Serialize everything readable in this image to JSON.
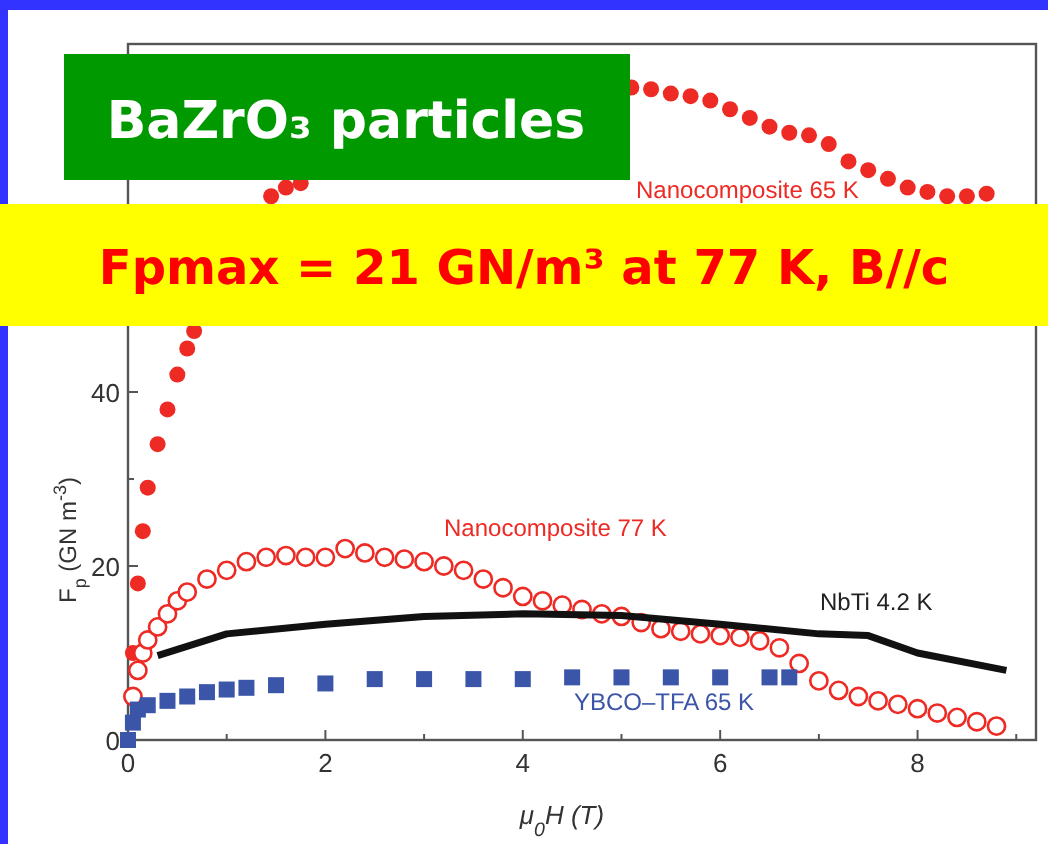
{
  "chart_data": {
    "type": "scatter",
    "xlabel": "μ$_{0}$H (T)",
    "ylabel": "F$_{p}$ (GN m$^{-3}$)",
    "xlim": [
      0,
      9.2
    ],
    "ylim": [
      0,
      80
    ],
    "xticks": [
      0,
      {
        "value": 1,
        "label": null
      },
      2,
      {
        "value": 3,
        "label": null
      },
      4,
      {
        "value": 5,
        "label": null
      },
      6,
      {
        "value": 7,
        "label": null
      },
      8,
      {
        "value": 9,
        "label": null
      }
    ],
    "yticks": [
      0,
      {
        "value": 10,
        "label": null
      },
      20,
      {
        "value": 30,
        "label": null
      },
      40
    ],
    "grid": false,
    "annotations": [
      "BaZrO₃ particles",
      "Fpmax = 21 GN/m³ at 77 K, B//c"
    ],
    "series": [
      {
        "name": "Nanocomposite 65 K",
        "color": "#ee2a24",
        "marker": "circle",
        "x": [
          0.05,
          0.1,
          0.15,
          0.2,
          0.3,
          0.4,
          0.5,
          0.6,
          0.67,
          1.45,
          1.6,
          1.75,
          5.1,
          5.3,
          5.5,
          5.7,
          5.9,
          6.1,
          6.3,
          6.5,
          6.7,
          6.9,
          7.1,
          7.3,
          7.5,
          7.7,
          7.9,
          8.1,
          8.3,
          8.5,
          8.7
        ],
        "values": [
          10,
          18,
          24,
          29,
          34,
          38,
          42,
          45,
          47,
          62.5,
          63.5,
          64,
          75,
          74.8,
          74.3,
          74,
          73.5,
          72.5,
          71.5,
          70.5,
          69.8,
          69.5,
          68.5,
          66.5,
          65.5,
          64.5,
          63.5,
          63,
          62.5,
          62.5,
          62.8
        ]
      },
      {
        "name": "Nanocomposite 77 K",
        "color": "#ee2a24",
        "marker": "circle",
        "x": [
          0.05,
          0.1,
          0.15,
          0.2,
          0.3,
          0.4,
          0.5,
          0.6,
          0.8,
          1.0,
          1.2,
          1.4,
          1.6,
          1.8,
          2.0,
          2.2,
          2.4,
          2.6,
          2.8,
          3.0,
          3.2,
          3.4,
          3.6,
          3.8,
          4.0,
          4.2,
          4.4,
          4.6,
          4.8,
          5.0,
          5.2,
          5.4,
          5.6,
          5.8,
          6.0,
          6.2,
          6.4,
          6.6,
          6.8,
          7.0,
          7.2,
          7.4,
          7.6,
          7.8,
          8.0,
          8.2,
          8.4,
          8.6,
          8.8
        ],
        "values": [
          5,
          8,
          10,
          11.5,
          13,
          14.5,
          16,
          17,
          18.5,
          19.5,
          20.5,
          21,
          21.2,
          21,
          21,
          22,
          21.5,
          21,
          20.8,
          20.5,
          20,
          19.5,
          18.5,
          17.5,
          16.5,
          16,
          15.5,
          15,
          14.5,
          14.2,
          13.5,
          12.8,
          12.5,
          12.2,
          12,
          11.8,
          11.4,
          10.6,
          8.8,
          6.8,
          5.7,
          5,
          4.5,
          4.1,
          3.6,
          3.1,
          2.6,
          2.1,
          1.6
        ]
      },
      {
        "name": "NbTi 4.2 K",
        "color": "#111111",
        "type": "line",
        "x": [
          0.3,
          1.0,
          2.0,
          3.0,
          4.0,
          5.0,
          6.0,
          7.0,
          7.5,
          8.0,
          8.9
        ],
        "values": [
          9.7,
          12.2,
          13.3,
          14.2,
          14.5,
          14.3,
          13.3,
          12.2,
          12,
          10,
          8
        ]
      },
      {
        "name": "YBCO–TFA 65 K",
        "color": "#3b55a8",
        "marker": "square",
        "x": [
          0,
          0.05,
          0.1,
          0.2,
          0.4,
          0.6,
          0.8,
          1.0,
          1.2,
          1.5,
          2.0,
          2.5,
          3.0,
          3.5,
          4.0,
          4.5,
          5.0,
          5.5,
          6.0,
          6.5,
          6.7
        ],
        "values": [
          0,
          2,
          3.5,
          4,
          4.5,
          5,
          5.5,
          5.8,
          6,
          6.3,
          6.5,
          7,
          7,
          7,
          7,
          7.2,
          7.2,
          7.2,
          7.2,
          7.2,
          7.2
        ]
      }
    ]
  }
}
